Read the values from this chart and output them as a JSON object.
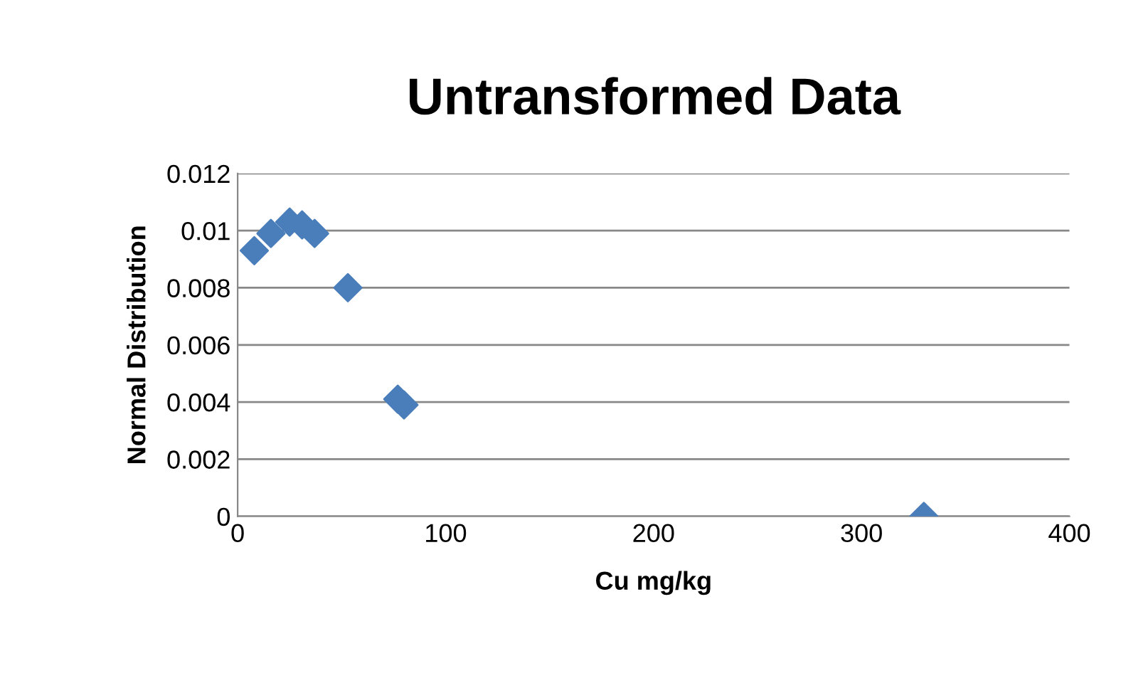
{
  "chart_data": {
    "type": "scatter",
    "title": "Untransformed Data",
    "xlabel": "Cu mg/kg",
    "ylabel": "Normal Distribution",
    "x": [
      8,
      16,
      25,
      31,
      37,
      53,
      77,
      80,
      330
    ],
    "values": [
      0.0093,
      0.0099,
      0.0103,
      0.0102,
      0.0099,
      0.008,
      0.0041,
      0.0039,
      0.0
    ],
    "color": "#4a7ebb",
    "marker": "diamond",
    "xlim": [
      0,
      400
    ],
    "xticks": [
      0,
      100,
      200,
      300,
      400
    ],
    "ylim": [
      0,
      0.012
    ],
    "yticks": [
      {
        "value": 0,
        "label": "0"
      },
      {
        "value": 0.002,
        "label": "0.002"
      },
      {
        "value": 0.004,
        "label": "0.004"
      },
      {
        "value": 0.006,
        "label": "0.006"
      },
      {
        "value": 0.008,
        "label": "0.008"
      },
      {
        "value": 0.01,
        "label": "0.01"
      },
      {
        "value": 0.012,
        "label": "0.012"
      }
    ],
    "grid": "y",
    "legend": false
  }
}
